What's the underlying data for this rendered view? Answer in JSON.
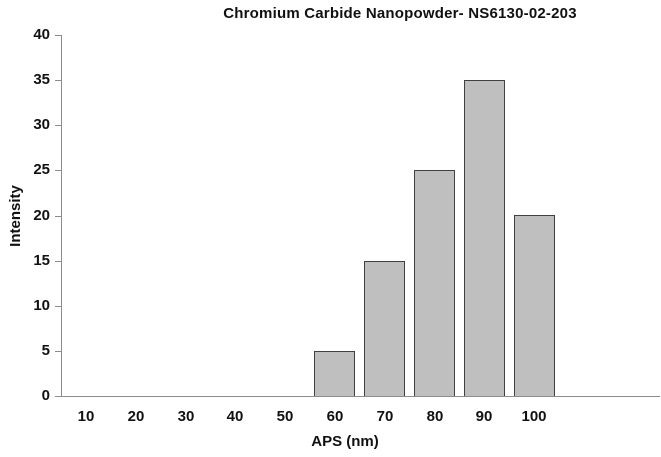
{
  "chart_data": {
    "type": "bar",
    "title": "Chromium Carbide Nanopowder- NS6130-02-203",
    "xlabel": "APS (nm)",
    "ylabel": "Intensity",
    "categories": [
      "10",
      "20",
      "30",
      "40",
      "50",
      "60",
      "70",
      "80",
      "90",
      "100"
    ],
    "values": [
      0,
      0,
      0,
      0,
      0,
      5,
      15,
      25,
      35,
      20
    ],
    "ylim": [
      0,
      40
    ],
    "ytick_step": 5,
    "grid": false,
    "legend_position": "none",
    "colors": {
      "bar_fill": "#bfbfbf",
      "bar_border": "#404040",
      "axis": "#8c8c8c",
      "text": "#111111",
      "background": "#ffffff"
    }
  }
}
